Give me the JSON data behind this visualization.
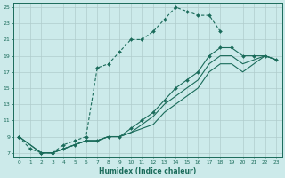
{
  "xlabel": "Humidex (Indice chaleur)",
  "bg_color": "#cceaea",
  "grid_color": "#b0cccc",
  "line_color": "#1a6b5a",
  "xlim": [
    -0.5,
    23.5
  ],
  "ylim": [
    6.5,
    25.5
  ],
  "xticks": [
    0,
    1,
    2,
    3,
    4,
    5,
    6,
    7,
    8,
    9,
    10,
    11,
    12,
    13,
    14,
    15,
    16,
    17,
    18,
    19,
    20,
    21,
    22,
    23
  ],
  "yticks": [
    7,
    9,
    11,
    13,
    15,
    17,
    19,
    21,
    23,
    25
  ],
  "line1_x": [
    0,
    1,
    2,
    3,
    4,
    5,
    6,
    7,
    8,
    9,
    10,
    11,
    12,
    13,
    14,
    15,
    16,
    17,
    18
  ],
  "line1_y": [
    9,
    7.5,
    7,
    7,
    8,
    8.5,
    9,
    17.5,
    18,
    19.5,
    21,
    21,
    22,
    23.5,
    25,
    24.5,
    24,
    24,
    22
  ],
  "line2_x": [
    0,
    2,
    3,
    4,
    5,
    6,
    7,
    8,
    9,
    10,
    11,
    12,
    13,
    14,
    15,
    16,
    17,
    18,
    19,
    20,
    21,
    22,
    23
  ],
  "line2_y": [
    9,
    7,
    7,
    7.5,
    8,
    8.5,
    8.5,
    9,
    9,
    10,
    11,
    12,
    13.5,
    15,
    16,
    17,
    19,
    20,
    20,
    19,
    19,
    19,
    18.5
  ],
  "line3_x": [
    0,
    2,
    3,
    4,
    5,
    6,
    7,
    8,
    9,
    10,
    11,
    12,
    13,
    14,
    15,
    16,
    17,
    18,
    19,
    20,
    21,
    22,
    23
  ],
  "line3_y": [
    9,
    7,
    7,
    7.5,
    8,
    8.5,
    8.5,
    9,
    9,
    9.5,
    10.5,
    11.5,
    13,
    14,
    15,
    16,
    18,
    19,
    19,
    18,
    18.5,
    19,
    18.5
  ],
  "line1_markers": true,
  "line2_markers": false,
  "line3_markers": false,
  "line4_x": [
    2,
    3,
    4,
    5,
    6,
    7,
    8,
    9,
    10,
    11,
    12,
    13,
    14,
    15,
    16,
    17,
    18,
    19,
    20,
    21,
    22,
    23
  ],
  "line4_y": [
    7,
    7,
    7.5,
    8,
    8.5,
    8.5,
    9,
    9,
    9.5,
    10,
    10.5,
    12,
    13,
    14,
    15,
    17,
    18,
    18,
    17,
    18,
    19,
    18.5
  ]
}
